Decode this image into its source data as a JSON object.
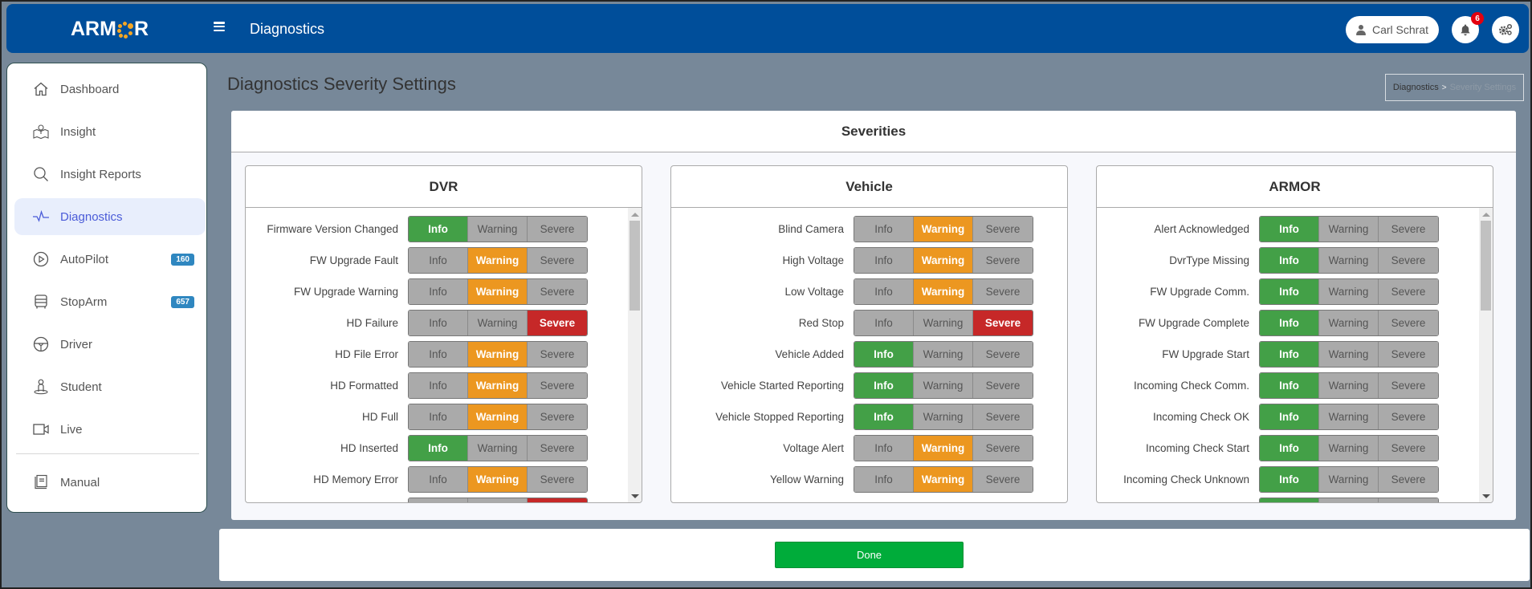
{
  "header": {
    "logo_text_left": "ARM",
    "logo_text_right": "R",
    "title": "Diagnostics",
    "user_name": "Carl Schrat",
    "notification_count": "6",
    "brand_color": "#004e9a"
  },
  "sidebar": {
    "items": [
      {
        "label": "Dashboard",
        "icon": "home-icon"
      },
      {
        "label": "Insight",
        "icon": "map-pin-icon"
      },
      {
        "label": "Insight Reports",
        "icon": "search-icon"
      },
      {
        "label": "Diagnostics",
        "icon": "pulse-icon",
        "active": true
      },
      {
        "label": "AutoPilot",
        "icon": "play-circle-icon",
        "badge": "160"
      },
      {
        "label": "StopArm",
        "icon": "bus-icon",
        "badge": "657"
      },
      {
        "label": "Driver",
        "icon": "steering-wheel-icon"
      },
      {
        "label": "Student",
        "icon": "student-icon"
      },
      {
        "label": "Live",
        "icon": "video-camera-icon"
      },
      {
        "label": "Manual",
        "icon": "book-icon"
      }
    ]
  },
  "page": {
    "title": "Diagnostics Severity Settings",
    "breadcrumb": {
      "parent": "Diagnostics",
      "separator": ">",
      "current": "Severity Settings"
    }
  },
  "severities": {
    "title": "Severities",
    "levels": [
      "Info",
      "Warning",
      "Severe"
    ],
    "colors": {
      "Info": "#43a047",
      "Warning": "#ec9720",
      "Severe": "#c62828",
      "off": "#aaaaaa"
    },
    "panels": [
      {
        "title": "DVR",
        "rows": [
          {
            "label": "Firmware Version Changed",
            "selected": "Info"
          },
          {
            "label": "FW Upgrade Fault",
            "selected": "Warning"
          },
          {
            "label": "FW Upgrade Warning",
            "selected": "Warning"
          },
          {
            "label": "HD Failure",
            "selected": "Severe"
          },
          {
            "label": "HD File Error",
            "selected": "Warning"
          },
          {
            "label": "HD Formatted",
            "selected": "Warning"
          },
          {
            "label": "HD Full",
            "selected": "Warning"
          },
          {
            "label": "HD Inserted",
            "selected": "Info"
          },
          {
            "label": "HD Memory Error",
            "selected": "Warning"
          },
          {
            "label": "",
            "selected": "Severe"
          }
        ]
      },
      {
        "title": "Vehicle",
        "rows": [
          {
            "label": "Blind Camera",
            "selected": "Warning"
          },
          {
            "label": "High Voltage",
            "selected": "Warning"
          },
          {
            "label": "Low Voltage",
            "selected": "Warning"
          },
          {
            "label": "Red Stop",
            "selected": "Severe"
          },
          {
            "label": "Vehicle Added",
            "selected": "Info"
          },
          {
            "label": "Vehicle Started Reporting",
            "selected": "Info"
          },
          {
            "label": "Vehicle Stopped Reporting",
            "selected": "Info"
          },
          {
            "label": "Voltage Alert",
            "selected": "Warning"
          },
          {
            "label": "Yellow Warning",
            "selected": "Warning"
          }
        ]
      },
      {
        "title": "ARMOR",
        "rows": [
          {
            "label": "Alert Acknowledged",
            "selected": "Info"
          },
          {
            "label": "DvrType Missing",
            "selected": "Info"
          },
          {
            "label": "FW Upgrade Comm.",
            "selected": "Info"
          },
          {
            "label": "FW Upgrade Complete",
            "selected": "Info"
          },
          {
            "label": "FW Upgrade Start",
            "selected": "Info"
          },
          {
            "label": "Incoming Check Comm.",
            "selected": "Info"
          },
          {
            "label": "Incoming Check OK",
            "selected": "Info"
          },
          {
            "label": "Incoming Check Start",
            "selected": "Info"
          },
          {
            "label": "Incoming Check Unknown",
            "selected": "Info"
          },
          {
            "label": "",
            "selected": "Info"
          }
        ]
      }
    ]
  },
  "footer": {
    "done_label": "Done"
  }
}
